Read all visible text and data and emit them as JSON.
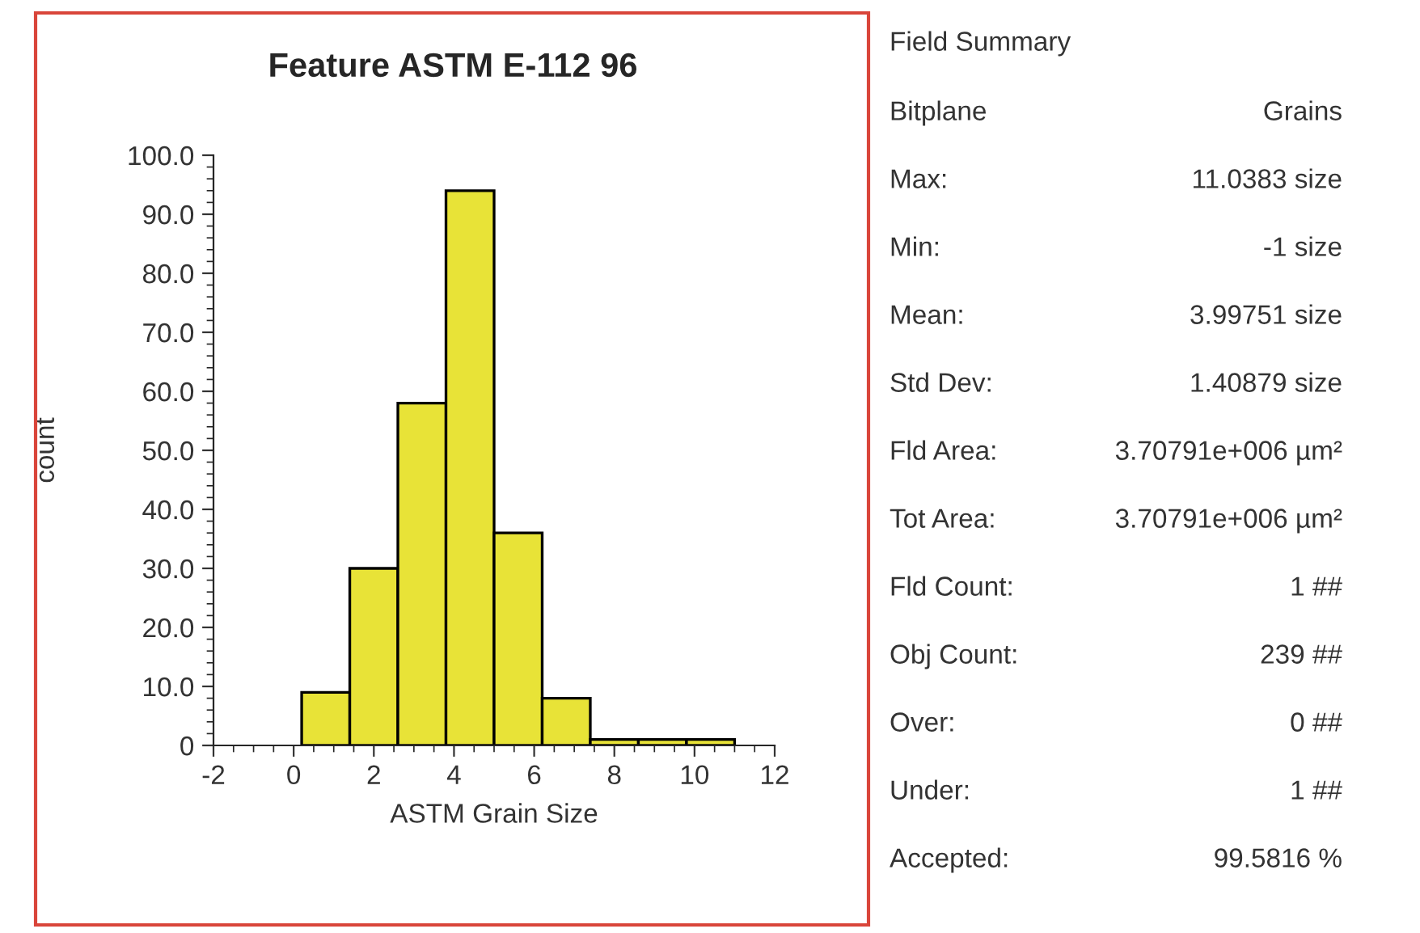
{
  "chart_data": [
    {
      "type": "histogram",
      "title": "Feature ASTM E-112 96",
      "xlabel": "ASTM Grain Size",
      "ylabel": "count",
      "color": "#e8e337",
      "bins": [
        0.2,
        1.4,
        2.6,
        3.8,
        5.0,
        6.2,
        7.4,
        8.6,
        9.8,
        11.0
      ],
      "values": [
        9,
        30,
        58,
        94,
        36,
        8,
        1,
        1,
        1
      ],
      "xlim": [
        -2,
        12
      ],
      "xticks": [
        -2,
        0,
        2,
        4,
        6,
        8,
        10,
        12
      ],
      "ylim": [
        0,
        100
      ],
      "yticks": [
        {
          "value": 0,
          "label": "0"
        },
        {
          "value": 10,
          "label": "10.0"
        },
        {
          "value": 20,
          "label": "20.0"
        },
        {
          "value": 30,
          "label": "30.0"
        },
        {
          "value": 40,
          "label": "40.0"
        },
        {
          "value": 50,
          "label": "50.0"
        },
        {
          "value": 60,
          "label": "60.0"
        },
        {
          "value": 70,
          "label": "70.0"
        },
        {
          "value": 80,
          "label": "80.0"
        },
        {
          "value": 90,
          "label": "90.0"
        },
        {
          "value": 100,
          "label": "100.0"
        }
      ],
      "grid": false,
      "legend": false
    },
    {
      "type": "other",
      "title": "Field Summary",
      "annotations": [
        "Bitplane",
        "Grains",
        "Max:",
        "11.0383 size",
        "Min:",
        "-1 size",
        "Mean:",
        "3.99751 size",
        "Std Dev:",
        "1.40879 size",
        "Fld Area:",
        "3.70791e+006 µm²",
        "Tot Area:",
        "3.70791e+006 µm²",
        "Fld Count:",
        "1 ##",
        "Obj Count:",
        "239 ##",
        "Over:",
        "0 ##",
        "Under:",
        "1 ##",
        "Accepted:",
        "99.5816 %"
      ]
    }
  ]
}
